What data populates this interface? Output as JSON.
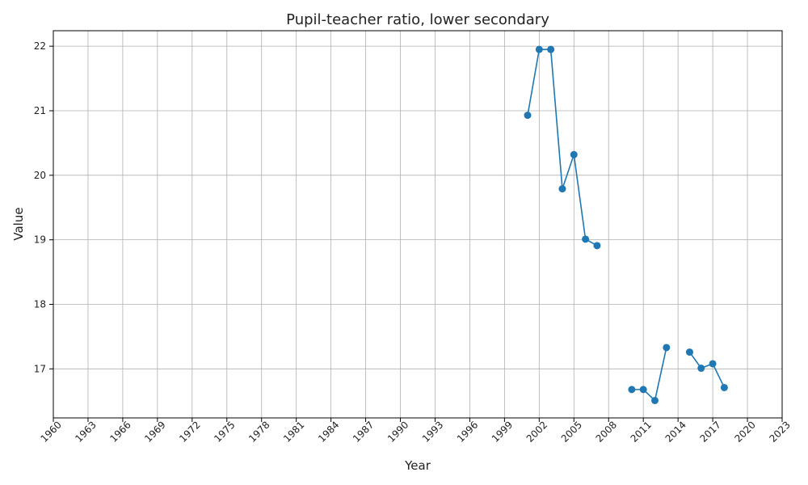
{
  "chart_data": {
    "type": "line",
    "title": "Pupil-teacher ratio, lower secondary",
    "xlabel": "Year",
    "ylabel": "Value",
    "xlim": [
      1960,
      2023
    ],
    "ylim": [
      16.24,
      22.24
    ],
    "x_ticks": [
      1960,
      1963,
      1966,
      1969,
      1972,
      1975,
      1978,
      1981,
      1984,
      1987,
      1990,
      1993,
      1996,
      1999,
      2002,
      2005,
      2008,
      2011,
      2014,
      2017,
      2020,
      2023
    ],
    "y_ticks": [
      17,
      18,
      19,
      20,
      21,
      22
    ],
    "grid": true,
    "series": [
      {
        "color": "#1f77b4",
        "marker": "circle",
        "segments": [
          [
            [
              2001,
              20.93
            ],
            [
              2002,
              21.95
            ],
            [
              2003,
              21.95
            ],
            [
              2004,
              19.79
            ],
            [
              2005,
              20.32
            ],
            [
              2006,
              19.01
            ],
            [
              2007,
              18.91
            ]
          ],
          [
            [
              2010,
              16.68
            ],
            [
              2011,
              16.68
            ],
            [
              2012,
              16.51
            ],
            [
              2013,
              17.33
            ]
          ],
          [
            [
              2015,
              17.26
            ],
            [
              2016,
              17.01
            ],
            [
              2017,
              17.08
            ],
            [
              2018,
              16.71
            ]
          ]
        ]
      }
    ]
  }
}
